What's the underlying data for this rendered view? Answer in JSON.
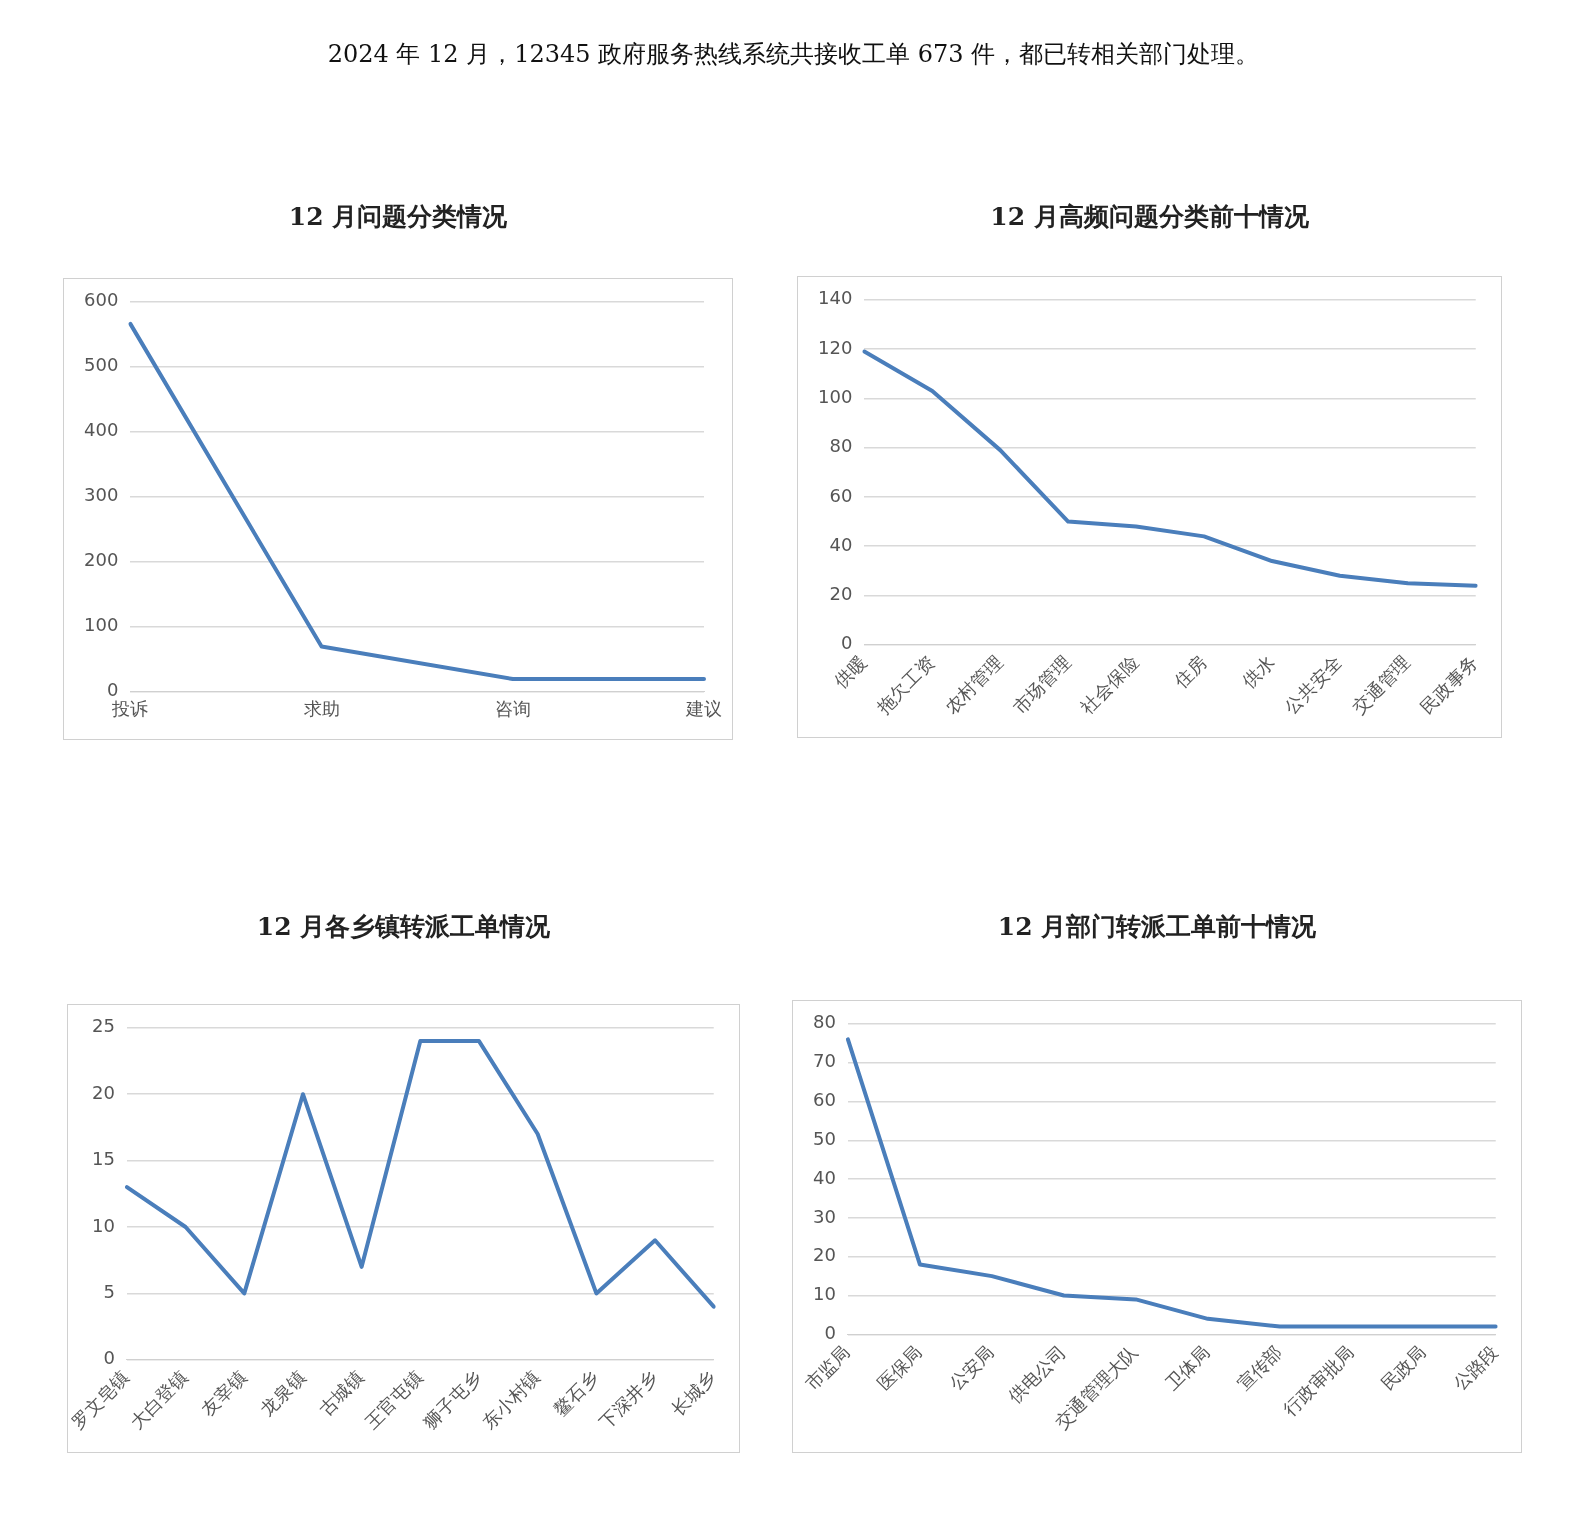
{
  "chart_data": [
    {
      "type": "other",
      "title": "2024 年 12 月，12345 政府服务热线系统共接收工单 673 件，都已转相关部门处理。"
    },
    {
      "type": "line",
      "title": "12 月问题分类情况",
      "categories": [
        "投诉",
        "求助",
        "咨询",
        "建议"
      ],
      "series": [
        {
          "color": "#4a7ebb",
          "values": [
            566,
            69,
            19,
            19
          ]
        }
      ],
      "ylim": [
        0,
        600
      ],
      "yticks": [
        0,
        100,
        200,
        300,
        400,
        500,
        600
      ],
      "grid": "y",
      "marker": "none",
      "line_style": "solid"
    },
    {
      "type": "line",
      "title": "12 月高频问题分类前十情况",
      "categories": [
        "供暖",
        "拖欠工资",
        "农村管理",
        "市场管理",
        "社会保险",
        "住房",
        "供水",
        "公共安全",
        "交通管理",
        "民政事务"
      ],
      "series": [
        {
          "color": "#4a7ebb",
          "values": [
            119,
            103,
            79,
            50,
            48,
            44,
            34,
            28,
            25,
            24
          ]
        }
      ],
      "ylim": [
        0,
        140
      ],
      "yticks": [
        0,
        20,
        40,
        60,
        80,
        100,
        120,
        140
      ],
      "grid": "y",
      "marker": "none",
      "line_style": "solid"
    },
    {
      "type": "line",
      "title": "12 月各乡镇转派工单情况",
      "categories": [
        "罗文皂镇",
        "大白登镇",
        "友宰镇",
        "龙泉镇",
        "古城镇",
        "王官屯镇",
        "狮子屯乡",
        "东小村镇",
        "鳌石乡",
        "下深井乡",
        "长城乡"
      ],
      "series": [
        {
          "color": "#4a7ebb",
          "values": [
            13,
            10,
            5,
            20,
            7,
            24,
            24,
            17,
            5,
            9,
            4
          ]
        }
      ],
      "ylim": [
        0,
        25
      ],
      "yticks": [
        0,
        5,
        10,
        15,
        20,
        25
      ],
      "grid": "y",
      "marker": "none",
      "line_style": "solid"
    },
    {
      "type": "line",
      "title": "12 月部门转派工单前十情况",
      "categories": [
        "市监局",
        "医保局",
        "公安局",
        "供电公司",
        "交通管理大队",
        "卫体局",
        "宣传部",
        "行政审批局",
        "民政局",
        "公路段"
      ],
      "series": [
        {
          "color": "#4a7ebb",
          "values": [
            76,
            18,
            15,
            10,
            9,
            4,
            2,
            2,
            2,
            2
          ]
        }
      ],
      "ylim": [
        0,
        80
      ],
      "yticks": [
        0,
        10,
        20,
        30,
        40,
        50,
        60,
        70,
        80
      ],
      "grid": "y",
      "marker": "none",
      "line_style": "solid"
    }
  ]
}
